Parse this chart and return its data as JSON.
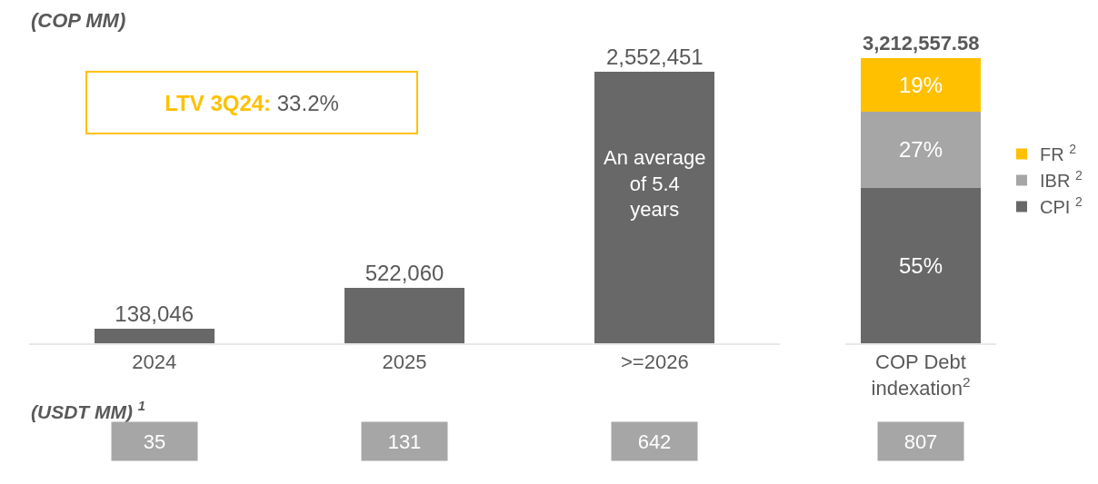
{
  "chart_data": [
    {
      "type": "bar",
      "categories": [
        "2024",
        "2025",
        ">=2026"
      ],
      "values": [
        138046,
        522060,
        2552451
      ],
      "value_labels": [
        "138,046",
        "522,060",
        "2,552,451"
      ],
      "color": "#686868",
      "annotations": [
        "(COP MM)",
        "LTV 3Q24: 33.2%",
        "An average of 5.4 years",
        "(USDT MM) $^{1}$",
        "35",
        "131",
        "642"
      ]
    },
    {
      "type": "bar",
      "stacked": true,
      "categories": [
        "COP Debt indexation$^{2}$"
      ],
      "legend": "right",
      "series": [
        {
          "name": "CPI $^{2}$",
          "color": "#686868",
          "values": [
            55
          ],
          "value_labels": [
            "55%"
          ]
        },
        {
          "name": "IBR $^{2}$",
          "color": "#a6a6a6",
          "values": [
            27
          ],
          "value_labels": [
            "27%"
          ]
        },
        {
          "name": "FR $^{2}$",
          "color": "#ffc000",
          "values": [
            19
          ],
          "value_labels": [
            "19%"
          ]
        }
      ],
      "annotations": [
        "3,212,557.58",
        "807"
      ]
    }
  ]
}
